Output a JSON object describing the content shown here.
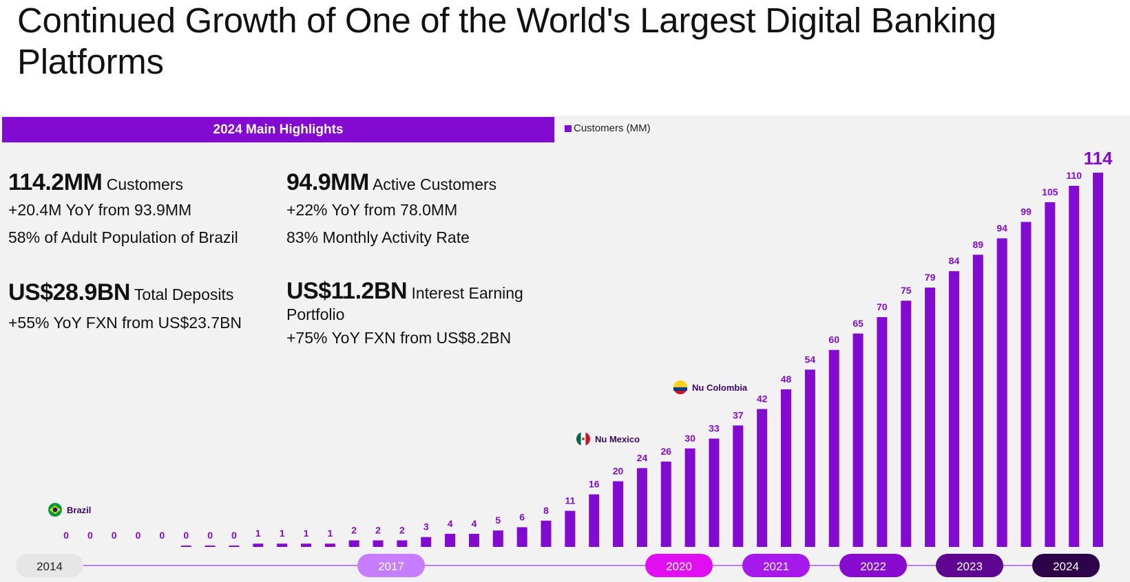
{
  "title": "Continued Growth of One of the World's Largest Digital Banking Platforms",
  "highlights": {
    "banner": "2024 Main Highlights",
    "customers": {
      "big": "114.2MM",
      "unit": "Customers",
      "line1": "+20.4M YoY from 93.9MM",
      "line2": "58% of Adult Population of Brazil"
    },
    "active": {
      "big": "94.9MM",
      "unit": "Active Customers",
      "line1": "+22% YoY from 78.0MM",
      "line2": "83% Monthly Activity Rate"
    },
    "deposits": {
      "big": "US$28.9BN",
      "unit": "Total Deposits",
      "line1": "+55% YoY FXN from US$23.7BN"
    },
    "portfolio": {
      "big": "US$11.2BN",
      "unit": "Interest Earning",
      "unit2": "Portfolio",
      "line1": "+75% YoY FXN from US$8.2BN"
    }
  },
  "legend": {
    "label": "Customers (MM)",
    "color": "#820ad1"
  },
  "chart_data": {
    "type": "bar",
    "series": [
      {
        "name": "Customers (MM)",
        "values": [
          0,
          0,
          0,
          0,
          0,
          0,
          0,
          0,
          1,
          1,
          1,
          1,
          2,
          2,
          2,
          3,
          4,
          4,
          5,
          6,
          8,
          11,
          16,
          20,
          24,
          26,
          30,
          33,
          37,
          42,
          48,
          54,
          60,
          65,
          70,
          75,
          79,
          84,
          89,
          94,
          99,
          105,
          110,
          114
        ]
      }
    ],
    "labels": [
      "0",
      "0",
      "0",
      "0",
      "0",
      "0",
      "0",
      "0",
      "1",
      "1",
      "1",
      "1",
      "2",
      "2",
      "2",
      "3",
      "4",
      "4",
      "5",
      "6",
      "8",
      "11",
      "16",
      "20",
      "24",
      "26",
      "30",
      "33",
      "37",
      "42",
      "48",
      "54",
      "60",
      "65",
      "70",
      "75",
      "79",
      "84",
      "89",
      "94",
      "99",
      "105",
      "110",
      "114"
    ],
    "bar_color": "#820ad1",
    "ylim": [
      0,
      114
    ],
    "markers": [
      {
        "label": "Brazil",
        "flag": "brazil",
        "index": 0
      },
      {
        "label": "Nu Mexico",
        "flag": "mexico",
        "index": 21
      },
      {
        "label": "Nu Colombia",
        "flag": "colombia",
        "index": 25
      }
    ],
    "years": [
      {
        "label": "2014",
        "bg": "#e6e6e6",
        "fg": "#222222"
      },
      {
        "label": "2017",
        "bg": "#c77dff",
        "fg": "#ffffff"
      },
      {
        "label": "2020",
        "bg": "#e20ef2",
        "fg": "#ffffff"
      },
      {
        "label": "2021",
        "bg": "#a618ec",
        "fg": "#ffffff"
      },
      {
        "label": "2022",
        "bg": "#8a0bd0",
        "fg": "#ffffff"
      },
      {
        "label": "2023",
        "bg": "#5f0691",
        "fg": "#ffffff"
      },
      {
        "label": "2024",
        "bg": "#2d0349",
        "fg": "#ffffff"
      }
    ]
  }
}
